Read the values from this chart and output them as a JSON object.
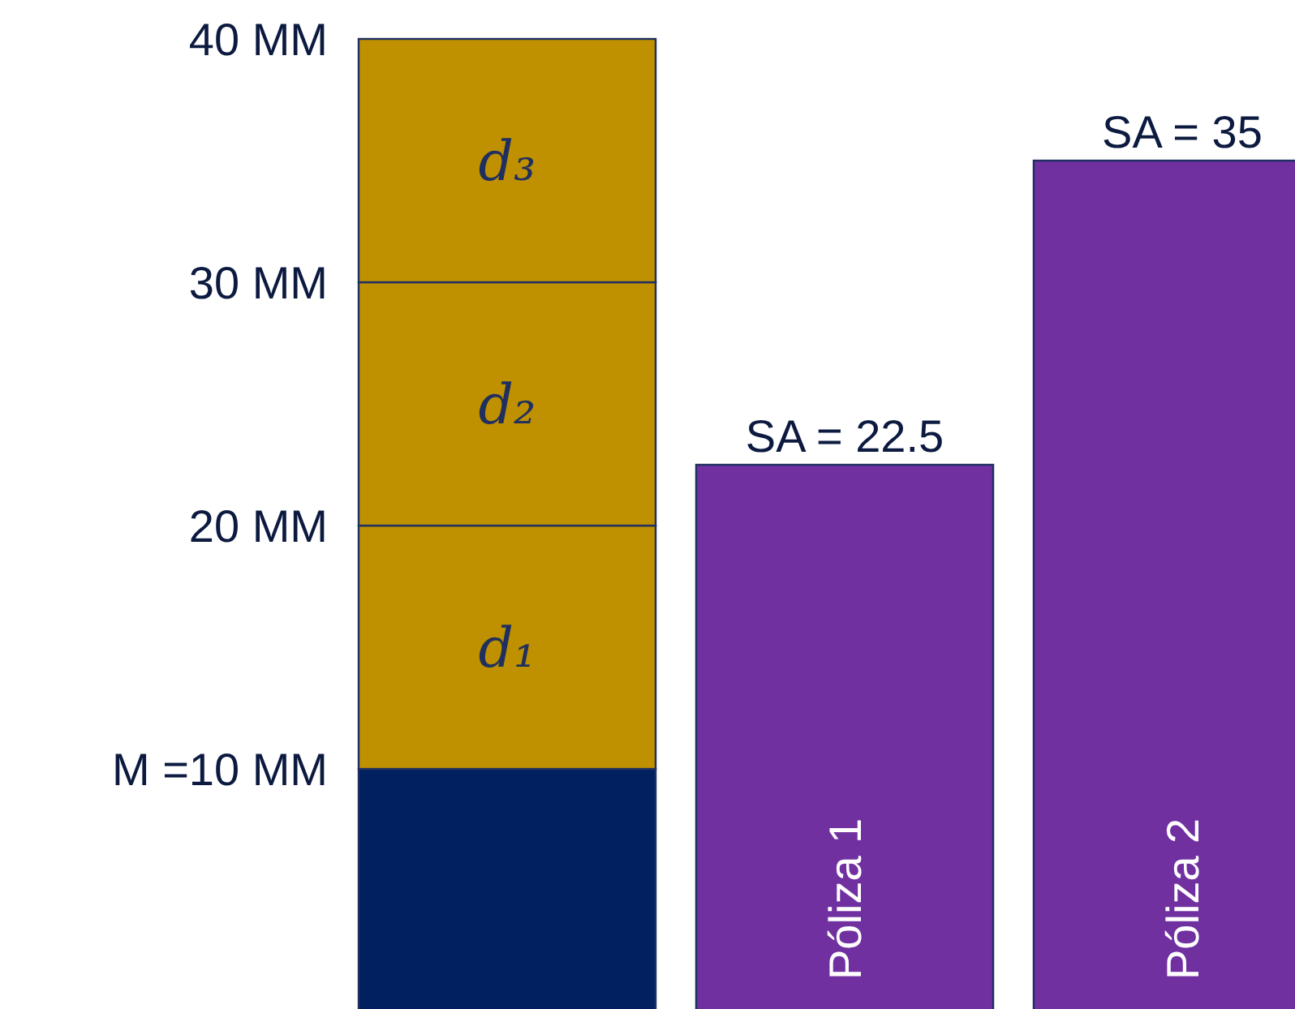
{
  "chart_data": {
    "type": "bar",
    "stacked": true,
    "grid": false,
    "categories": [
      null,
      "Póliza 1",
      "Póliza 2"
    ],
    "series": [
      {
        "color": "#002060",
        "values": [
          10,
          null,
          null
        ]
      },
      {
        "name": "d₁",
        "color": "#bf9000",
        "values": [
          10,
          null,
          null
        ]
      },
      {
        "name": "d₂",
        "color": "#bf9000",
        "values": [
          10,
          null,
          null
        ]
      },
      {
        "name": "d₃",
        "color": "#bf9000",
        "values": [
          10,
          null,
          null
        ]
      },
      {
        "color": "#7030a0",
        "values": [
          null,
          22.5,
          35
        ],
        "value_labels": [
          null,
          "SA = 22.5",
          "SA = 35"
        ]
      }
    ],
    "ylim": [
      0,
      40
    ],
    "yticks": [
      {
        "value": 10,
        "label": "M =10 MM"
      },
      {
        "value": 20,
        "label": "20 MM"
      },
      {
        "value": 30,
        "label": "30 MM"
      },
      {
        "value": 40,
        "label": "40 MM"
      }
    ]
  }
}
